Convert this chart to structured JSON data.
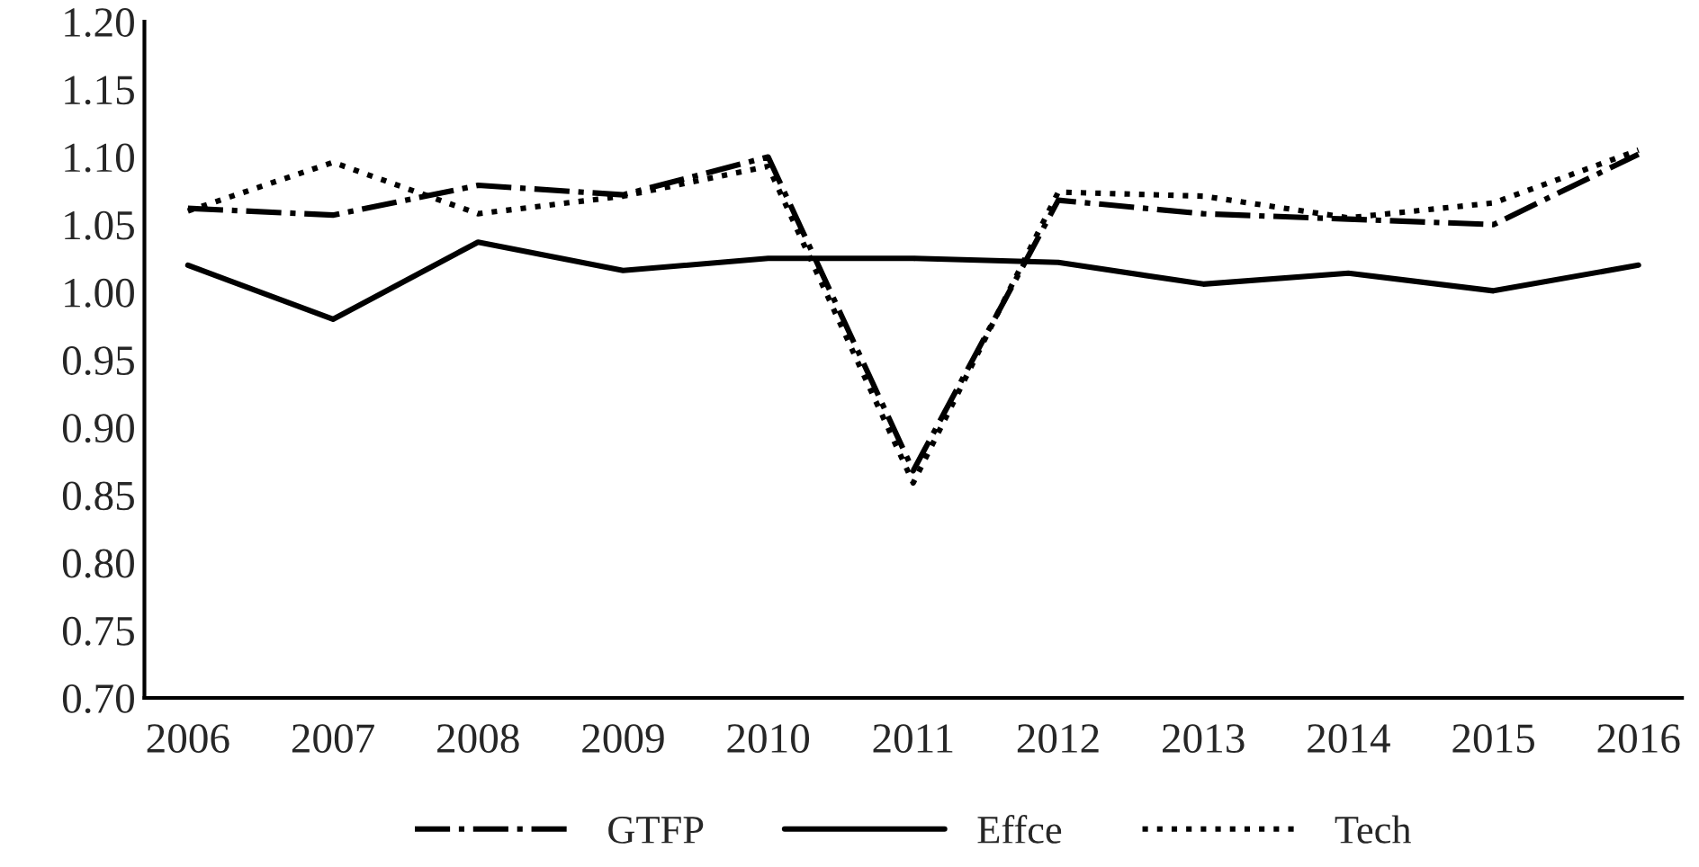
{
  "chart_data": {
    "type": "line",
    "categories": [
      "2006",
      "2007",
      "2008",
      "2009",
      "2010",
      "2011",
      "2012",
      "2013",
      "2014",
      "2015",
      "2016"
    ],
    "series": [
      {
        "name": "GTFP",
        "color": "#000000",
        "line_style": "dashdot",
        "values": [
          1.062,
          1.057,
          1.079,
          1.072,
          1.1,
          0.868,
          1.068,
          1.058,
          1.054,
          1.05,
          1.102
        ]
      },
      {
        "name": "Effce",
        "color": "#000000",
        "line_style": "solid",
        "values": [
          1.02,
          0.98,
          1.037,
          1.016,
          1.025,
          1.025,
          1.022,
          1.006,
          1.014,
          1.001,
          1.02
        ]
      },
      {
        "name": "Tech",
        "color": "#000000",
        "line_style": "dotted",
        "values": [
          1.06,
          1.096,
          1.058,
          1.071,
          1.093,
          0.859,
          1.074,
          1.071,
          1.055,
          1.066,
          1.105
        ]
      }
    ],
    "ylim": [
      0.7,
      1.2
    ],
    "yticks": [
      {
        "value": 0.7,
        "label": "0.70"
      },
      {
        "value": 0.75,
        "label": "0.75"
      },
      {
        "value": 0.8,
        "label": "0.80"
      },
      {
        "value": 0.85,
        "label": "0.85"
      },
      {
        "value": 0.9,
        "label": "0.90"
      },
      {
        "value": 0.95,
        "label": "0.95"
      },
      {
        "value": 1.0,
        "label": "1.00"
      },
      {
        "value": 1.05,
        "label": "1.05"
      },
      {
        "value": 1.1,
        "label": "1.10"
      },
      {
        "value": 1.15,
        "label": "1.15"
      },
      {
        "value": 1.2,
        "label": "1.20"
      }
    ],
    "grid": false,
    "legend": "bottom",
    "marker": "none"
  }
}
